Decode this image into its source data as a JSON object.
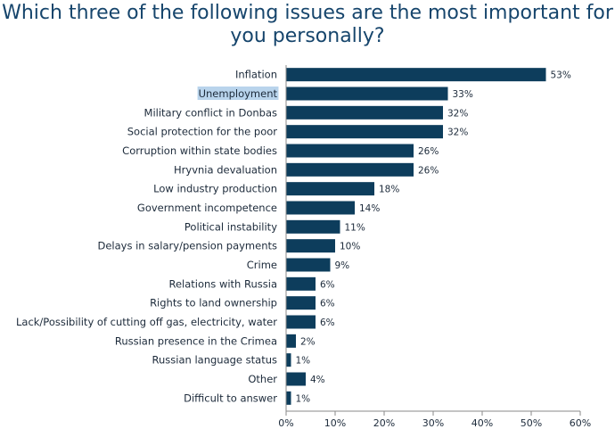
{
  "title": "Which three of the following issues are the most important for you personally?",
  "chart_data": {
    "type": "bar",
    "orientation": "horizontal",
    "title": "Which three of the following issues are the most important for you personally?",
    "categories": [
      "Inflation",
      "Unemployment",
      "Military conflict in Donbas",
      "Social protection for the poor",
      "Corruption within state bodies",
      "Hryvnia devaluation",
      "Low industry production",
      "Government incompetence",
      "Political instability",
      "Delays in salary/pension payments",
      "Crime",
      "Relations with Russia",
      "Rights to land ownership",
      "Lack/Possibility of cutting off gas, electricity, water",
      "Russian presence in the Crimea",
      "Russian language status",
      "Other",
      "Difficult to answer"
    ],
    "values": [
      53,
      33,
      32,
      32,
      26,
      26,
      18,
      14,
      11,
      10,
      9,
      6,
      6,
      6,
      2,
      1,
      4,
      1
    ],
    "value_labels": [
      "53%",
      "33%",
      "32%",
      "32%",
      "26%",
      "26%",
      "18%",
      "14%",
      "11%",
      "10%",
      "9%",
      "6%",
      "6%",
      "6%",
      "2%",
      "1%",
      "4%",
      "1%"
    ],
    "highlighted_category": "Unemployment",
    "xlim": [
      0,
      60
    ],
    "x_ticks": [
      "0%",
      "10%",
      "20%",
      "30%",
      "40%",
      "50%",
      "60%"
    ],
    "grid": false,
    "legend": "none",
    "colors": {
      "bar": "#0d3d5c",
      "highlight": "#b9d4ec",
      "axis": "#8a8a8a",
      "title": "#16456c"
    }
  }
}
